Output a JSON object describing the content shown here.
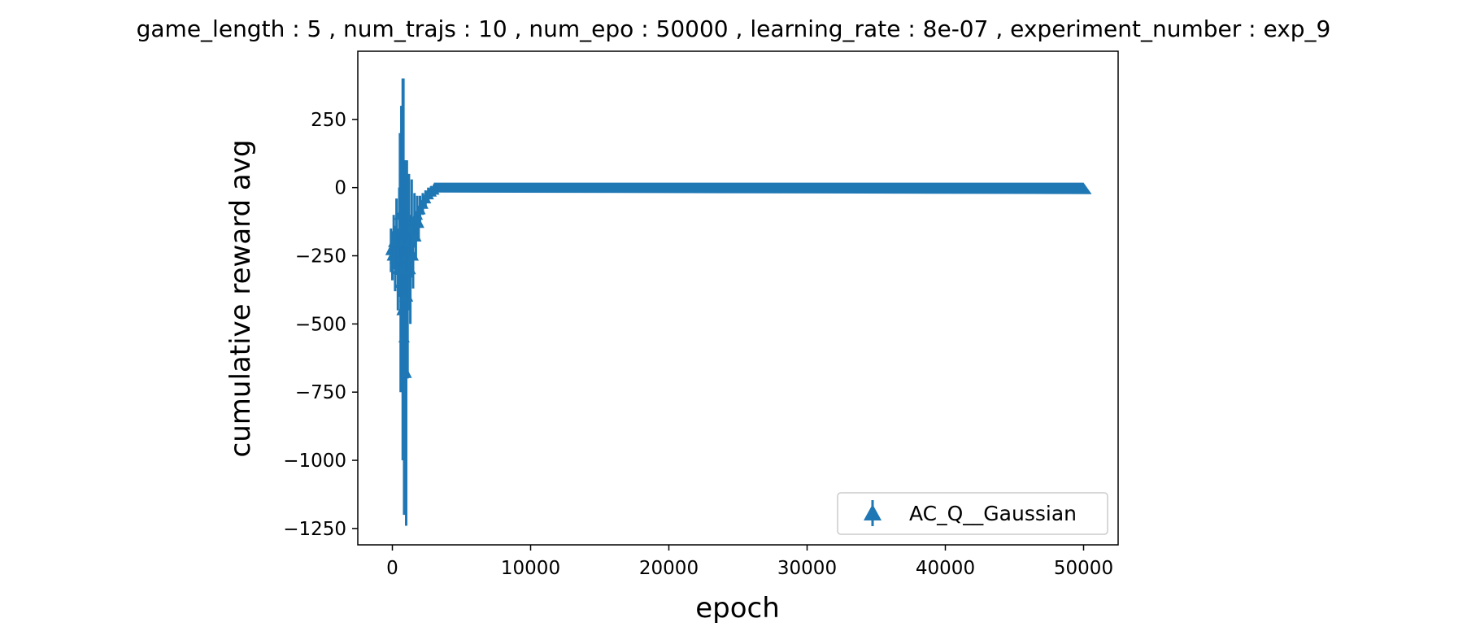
{
  "chart_data": {
    "type": "scatter",
    "title": "game_length : 5 , num_trajs : 10 , num_epo : 50000 , learning_rate : 8e-07 , experiment_number : exp_9",
    "xlabel": "epoch",
    "ylabel": "cumulative reward avg",
    "xlim": [
      -2500,
      52500
    ],
    "ylim": [
      -1310,
      500
    ],
    "xticks": [
      0,
      10000,
      20000,
      30000,
      40000,
      50000
    ],
    "xtick_labels": [
      "0",
      "10000",
      "20000",
      "30000",
      "40000",
      "50000"
    ],
    "yticks": [
      250,
      0,
      -250,
      -500,
      -750,
      -1000,
      -1250
    ],
    "ytick_labels": [
      "250",
      "0",
      "−250",
      "−500",
      "−750",
      "−1000",
      "−1250"
    ],
    "grid": false,
    "legend_position": "lower-right",
    "series": [
      {
        "name": "AC_Q__Gaussian",
        "color": "#1f77b4",
        "marker": "triangle-up-with-errorbar",
        "points": [
          {
            "x": -100,
            "y": -230,
            "err": 80
          },
          {
            "x": 0,
            "y": -250,
            "err": 90
          },
          {
            "x": 100,
            "y": -200,
            "err": 100
          },
          {
            "x": 200,
            "y": -260,
            "err": 120
          },
          {
            "x": 300,
            "y": -180,
            "err": 140
          },
          {
            "x": 400,
            "y": -300,
            "err": 150
          },
          {
            "x": 500,
            "y": -200,
            "err": 200
          },
          {
            "x": 550,
            "y": -100,
            "err": 300
          },
          {
            "x": 600,
            "y": -350,
            "err": 400
          },
          {
            "x": 650,
            "y": -150,
            "err": 450
          },
          {
            "x": 700,
            "y": -450,
            "err": 300
          },
          {
            "x": 750,
            "y": -300,
            "err": 700
          },
          {
            "x": 800,
            "y": -200,
            "err": 600
          },
          {
            "x": 850,
            "y": -550,
            "err": 650
          },
          {
            "x": 900,
            "y": -400,
            "err": 500
          },
          {
            "x": 950,
            "y": -300,
            "err": 400
          },
          {
            "x": 1000,
            "y": -680,
            "err": 560
          },
          {
            "x": 1050,
            "y": -250,
            "err": 350
          },
          {
            "x": 1100,
            "y": -400,
            "err": 300
          },
          {
            "x": 1200,
            "y": -200,
            "err": 250
          },
          {
            "x": 1300,
            "y": -300,
            "err": 200
          },
          {
            "x": 1400,
            "y": -150,
            "err": 180
          },
          {
            "x": 1500,
            "y": -250,
            "err": 120
          },
          {
            "x": 1600,
            "y": -120,
            "err": 100
          },
          {
            "x": 1700,
            "y": -180,
            "err": 80
          },
          {
            "x": 1800,
            "y": -100,
            "err": 70
          },
          {
            "x": 1900,
            "y": -130,
            "err": 60
          },
          {
            "x": 2000,
            "y": -80,
            "err": 50
          },
          {
            "x": 2200,
            "y": -60,
            "err": 40
          },
          {
            "x": 2400,
            "y": -40,
            "err": 30
          },
          {
            "x": 2600,
            "y": -25,
            "err": 25
          },
          {
            "x": 2800,
            "y": -15,
            "err": 20
          },
          {
            "x": 3000,
            "y": -8,
            "err": 18
          }
        ],
        "steady_state": {
          "x_start": 3000,
          "x_end": 50000,
          "y": 0,
          "err": 18
        }
      }
    ]
  }
}
